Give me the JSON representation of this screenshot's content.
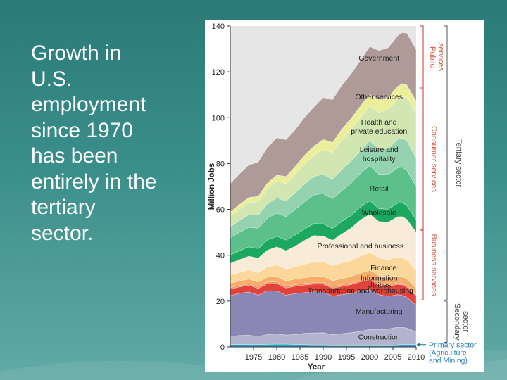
{
  "slide": {
    "text": "Growth in\nU.S.\nemployment\nsince 1970\nhas been\nentirely in the\ntertiary\nsector."
  },
  "chart_data": {
    "type": "area",
    "stacked": true,
    "x": [
      1970,
      1972,
      1974,
      1976,
      1978,
      1980,
      1982,
      1984,
      1986,
      1988,
      1990,
      1992,
      1994,
      1996,
      1998,
      2000,
      2002,
      2004,
      2006,
      2007,
      2008,
      2010
    ],
    "xticks": [
      1975,
      1980,
      1985,
      1990,
      1995,
      2000,
      2005,
      2010
    ],
    "xlabel": "Year",
    "ylabel": "Million Jobs",
    "ylim": [
      0,
      140
    ],
    "yticks": [
      0,
      20,
      40,
      60,
      80,
      100,
      120,
      140
    ],
    "grid": false,
    "series": [
      {
        "name": "Primary sector (Agriculture and Mining)",
        "color": "#20a4c4",
        "values": [
          1,
          1,
          1,
          1,
          1.1,
          1.2,
          1.2,
          1,
          1,
          0.9,
          0.9,
          0.8,
          0.8,
          0.8,
          0.8,
          0.8,
          0.8,
          0.8,
          0.9,
          1,
          1,
          1
        ]
      },
      {
        "name": "Construction",
        "color": "#b3b2cf",
        "values": [
          3.6,
          4,
          4.1,
          3.6,
          4.3,
          4.5,
          4,
          4.4,
          5,
          5.2,
          5.3,
          4.6,
          5,
          5.4,
          6,
          6.8,
          6.7,
          7,
          7.7,
          7.6,
          7.2,
          5.6
        ]
      },
      {
        "name": "Manufacturing",
        "color": "#8b87b4",
        "values": [
          17.8,
          18.4,
          18.9,
          18,
          19.1,
          18.7,
          17.4,
          17.9,
          17.7,
          17.9,
          17.7,
          16.8,
          17,
          17.2,
          17.6,
          17.3,
          15.3,
          14.3,
          14.2,
          13.9,
          13.4,
          11.5
        ]
      },
      {
        "name": "Transportation and warehousing",
        "color": "#e2423a",
        "values": [
          2.8,
          2.8,
          2.9,
          2.9,
          3.1,
          3.3,
          3.1,
          3.2,
          3.3,
          3.4,
          3.5,
          3.4,
          3.6,
          3.8,
          4,
          4.4,
          4.2,
          4.3,
          4.5,
          4.6,
          4.5,
          4.2
        ]
      },
      {
        "name": "Utilities",
        "color": "#f08a5e",
        "values": [
          0.6,
          0.6,
          0.6,
          0.7,
          0.7,
          0.7,
          0.7,
          0.7,
          0.7,
          0.7,
          0.7,
          0.7,
          0.7,
          0.6,
          0.6,
          0.6,
          0.6,
          0.6,
          0.6,
          0.6,
          0.6,
          0.6
        ]
      },
      {
        "name": "Information",
        "color": "#f6ac6a",
        "values": [
          2,
          2,
          2.1,
          2.1,
          2.2,
          2.4,
          2.4,
          2.4,
          2.5,
          2.6,
          2.7,
          2.6,
          2.7,
          2.9,
          3.2,
          3.6,
          3.4,
          3.1,
          3,
          3,
          3,
          2.7
        ]
      },
      {
        "name": "Finance",
        "color": "#fbd79b",
        "values": [
          3.5,
          3.7,
          4,
          4.1,
          4.5,
          5,
          5.2,
          5.4,
          5.9,
          6.3,
          6.6,
          6.5,
          6.9,
          6.9,
          7.4,
          7.7,
          7.8,
          8,
          8.3,
          8.3,
          8.2,
          7.7
        ]
      },
      {
        "name": "Professional and business",
        "color": "#f8ecd8",
        "values": [
          5.1,
          5.6,
          6,
          6.3,
          7.2,
          7.9,
          8,
          9,
          10.4,
          11.6,
          11,
          11.1,
          12.6,
          14.3,
          15.8,
          16.7,
          15.9,
          16.4,
          17.6,
          17.9,
          17.8,
          16.7
        ]
      },
      {
        "name": "Wholesale",
        "color": "#1ca85e",
        "values": [
          3.7,
          3.9,
          4.1,
          4.2,
          4.5,
          4.6,
          4.6,
          4.9,
          5,
          5.2,
          5.3,
          5.2,
          5.4,
          5.5,
          5.7,
          5.9,
          5.6,
          5.6,
          5.9,
          6,
          6,
          5.5
        ]
      },
      {
        "name": "Retail",
        "color": "#5cc08a",
        "values": [
          7.5,
          8.1,
          8.5,
          8.9,
          9.5,
          10.1,
          10.3,
          11.1,
          11.9,
          12.5,
          13.2,
          12.9,
          13.5,
          14.1,
          14.6,
          15.3,
          15.1,
          15.1,
          15.4,
          15.5,
          15.4,
          14.4
        ]
      },
      {
        "name": "Leisure and hospitality",
        "color": "#95d3b0",
        "values": [
          4.8,
          5.1,
          5.5,
          5.7,
          6.3,
          6.7,
          6.8,
          7.4,
          7.7,
          8.1,
          8.4,
          8.5,
          9.2,
          9.6,
          10,
          10.8,
          11,
          11.4,
          12.4,
          12.7,
          12.9,
          12.5
        ]
      },
      {
        "name": "Health and private education",
        "color": "#d2e6b2",
        "values": [
          4.6,
          5,
          5.4,
          5.9,
          6.6,
          7.1,
          7.6,
          8,
          8.8,
          9.2,
          10.9,
          11.7,
          12.9,
          13.6,
          14.3,
          15.1,
          16,
          16.9,
          17.8,
          18.3,
          18.8,
          19.5
        ]
      },
      {
        "name": "Other services",
        "color": "#ebee9a",
        "values": [
          1.8,
          2,
          2.1,
          2.3,
          2.4,
          2.8,
          3.1,
          3.4,
          3.8,
          4,
          4.3,
          4.4,
          4.7,
          5,
          5.1,
          5.2,
          5.4,
          5.4,
          5.4,
          5.5,
          5.5,
          5.3
        ]
      },
      {
        "name": "Government",
        "color": "#ae9b97",
        "values": [
          12.4,
          13.3,
          14.2,
          14.9,
          15.5,
          16.2,
          16,
          16,
          16.5,
          17,
          18.3,
          18.6,
          19.1,
          19.4,
          19.9,
          20.8,
          21.5,
          21.6,
          22,
          22.2,
          22.5,
          22.5
        ]
      }
    ],
    "series_labels": [
      {
        "name": "Government",
        "x": 2002,
        "y": 125
      },
      {
        "name": "Other services",
        "x": 2002,
        "y": 108
      },
      {
        "name": "Health and",
        "x": 2002,
        "y": 97
      },
      {
        "name": "private education",
        "x": 2002,
        "y": 93
      },
      {
        "name": "Leisure and",
        "x": 2002,
        "y": 85
      },
      {
        "name": "hospitality",
        "x": 2002,
        "y": 81
      },
      {
        "name": "Retail",
        "x": 2002,
        "y": 68
      },
      {
        "name": "Wholesale",
        "x": 2002,
        "y": 57.5
      },
      {
        "name": "Professional and business",
        "x": 1998,
        "y": 43
      },
      {
        "name": "Finance",
        "x": 2003,
        "y": 33.5
      },
      {
        "name": "Information",
        "x": 2002,
        "y": 29
      },
      {
        "name": "Utilities",
        "x": 2002,
        "y": 26
      },
      {
        "name": "Transportation and warehousing",
        "x": 1998,
        "y": 23.5
      },
      {
        "name": "Manufacturing",
        "x": 2002,
        "y": 14.5
      },
      {
        "name": "Construction",
        "x": 2002,
        "y": 3.2
      }
    ],
    "groups": [
      {
        "name": "Public services",
        "y": [
          113,
          140
        ],
        "lines": [
          "Public",
          "services"
        ]
      },
      {
        "name": "Consumer services",
        "y": [
          51,
          113
        ],
        "lines": [
          "Consumer services"
        ]
      },
      {
        "name": "Business services",
        "y": [
          20.5,
          51
        ],
        "lines": [
          "Business services"
        ]
      },
      {
        "name": "Tertiary sector",
        "y": [
          20.5,
          140
        ],
        "lines": [
          "Tertiary sector"
        ]
      },
      {
        "name": "Secondary sector",
        "y": [
          2,
          20
        ],
        "lines": [
          "Secondary",
          "sector"
        ]
      }
    ],
    "primary_label": [
      "Primary sector",
      "(Agriculture",
      "and Mining)"
    ],
    "colors": {
      "background": "#e6e6e6",
      "axis": "#333333",
      "label": "#222222",
      "group": "#c0392b",
      "group_text": "#d65a44"
    }
  }
}
